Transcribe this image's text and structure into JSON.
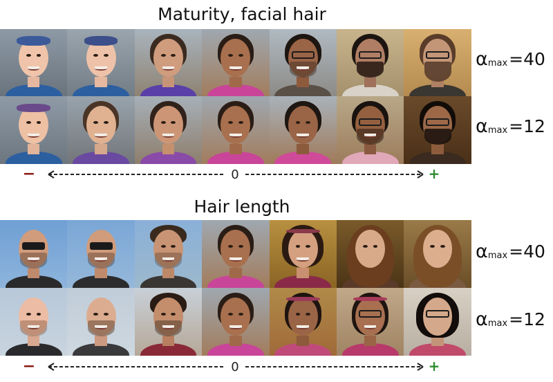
{
  "sections": [
    {
      "title": "Maturity, facial hair",
      "rows": [
        {
          "alpha_symbol": "α",
          "sub": "max",
          "value": "=40"
        },
        {
          "alpha_symbol": "α",
          "sub": "max",
          "value": "=12"
        }
      ]
    },
    {
      "title": "Hair length",
      "rows": [
        {
          "alpha_symbol": "α",
          "sub": "max",
          "value": "=40"
        },
        {
          "alpha_symbol": "α",
          "sub": "max",
          "value": "=12"
        }
      ]
    }
  ],
  "axis": {
    "minus": "−",
    "zero": "0",
    "plus": "+"
  },
  "colors": {
    "minus": "#8b1a14",
    "plus": "#2e8b2e",
    "text": "#111111"
  }
}
